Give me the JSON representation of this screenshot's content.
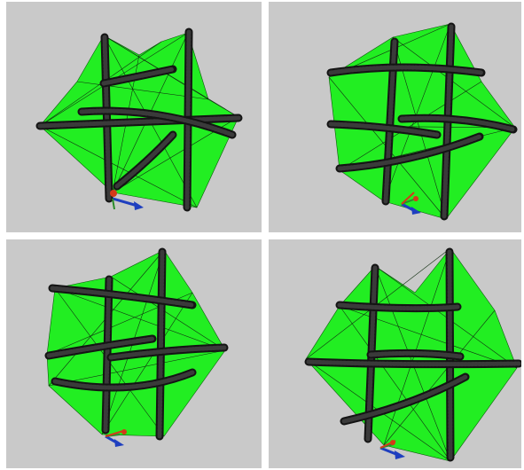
{
  "colors": {
    "background": "#c9c9c9",
    "hull_fill": "#22ee22",
    "wire": "#141414",
    "axis_x": "#1f3fbf",
    "axis_y": "#2a8c2a",
    "axis_z": "#d43a1a"
  },
  "panels": [
    {
      "view": "view-1"
    },
    {
      "view": "view-2"
    },
    {
      "view": "view-3"
    },
    {
      "view": "view-4"
    }
  ]
}
